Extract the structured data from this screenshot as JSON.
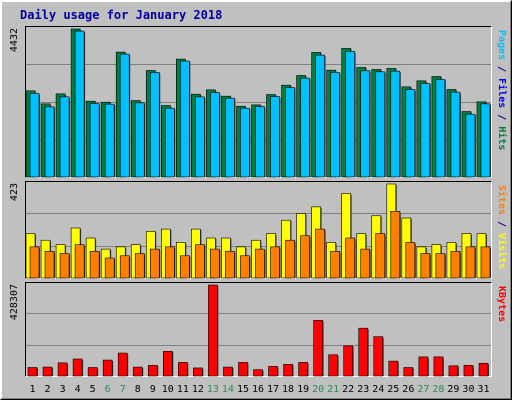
{
  "chart_data": {
    "type": "bar",
    "title": "Daily usage for January 2018",
    "x": [
      1,
      2,
      3,
      4,
      5,
      6,
      7,
      8,
      9,
      10,
      11,
      12,
      13,
      14,
      15,
      16,
      17,
      18,
      19,
      20,
      21,
      22,
      23,
      24,
      25,
      26,
      27,
      28,
      29,
      30,
      31
    ],
    "weekend_days": [
      6,
      7,
      13,
      14,
      20,
      21,
      27,
      28
    ],
    "colors": {
      "background": "#c0c0c0",
      "plot_background": "#c0c0c0",
      "title": "#0000a0",
      "weekday_label": "#000000",
      "weekend_label": "#2e8b57",
      "hits": "#008040",
      "files": "#0000ff",
      "pages": "#00c0ff",
      "visits": "#ffff00",
      "sites": "#ff8000",
      "kbytes": "#ff0000"
    },
    "panels": [
      {
        "id": "top",
        "ymax_label": "4432",
        "ymax": 4432,
        "right_label": [
          {
            "text": "Pages",
            "color_key": "pages"
          },
          {
            "text": " / ",
            "color_key": "title"
          },
          {
            "text": "Files",
            "color_key": "files"
          },
          {
            "text": " / ",
            "color_key": "title"
          },
          {
            "text": "Hits",
            "color_key": "hits"
          }
        ],
        "series": [
          {
            "name": "Hits",
            "color_key": "hits",
            "values": [
              2580,
              2190,
              2490,
              4432,
              2270,
              2240,
              3740,
              2290,
              3190,
              2140,
              3530,
              2480,
              2610,
              2420,
              2120,
              2160,
              2470,
              2750,
              3040,
              3730,
              3200,
              3850,
              3280,
              3220,
              3250,
              2700,
              2880,
              3010,
              2620,
              1960,
              2250
            ]
          },
          {
            "name": "Pages",
            "color_key": "pages",
            "values": [
              2500,
              2100,
              2400,
              4370,
              2200,
              2180,
              3680,
              2220,
              3130,
              2060,
              3470,
              2400,
              2530,
              2360,
              2060,
              2110,
              2410,
              2680,
              2960,
              3650,
              3130,
              3760,
              3180,
              3150,
              3170,
              2620,
              2800,
              2920,
              2540,
              1880,
              2190
            ]
          }
        ]
      },
      {
        "id": "middle",
        "ymax_label": "423",
        "ymax": 423,
        "right_label": [
          {
            "text": "Sites",
            "color_key": "sites"
          },
          {
            "text": " / ",
            "color_key": "title"
          },
          {
            "text": "Visits",
            "color_key": "visits"
          }
        ],
        "series": [
          {
            "name": "Visits",
            "color_key": "visits",
            "values": [
              200,
              170,
              150,
              225,
              180,
              130,
              140,
              150,
              210,
              220,
              160,
              220,
              180,
              180,
              140,
              170,
              200,
              260,
              290,
              320,
              160,
              380,
              200,
              280,
              423,
              270,
              140,
              150,
              160,
              200,
              200
            ]
          },
          {
            "name": "Sites",
            "color_key": "sites",
            "values": [
              140,
              120,
              110,
              150,
              120,
              90,
              100,
              110,
              130,
              140,
              100,
              150,
              130,
              120,
              100,
              130,
              140,
              170,
              190,
              220,
              120,
              180,
              130,
              200,
              300,
              160,
              110,
              110,
              120,
              140,
              140
            ]
          }
        ]
      },
      {
        "id": "bottom",
        "ymax_label": "428307",
        "ymax": 428307,
        "right_label": [
          {
            "text": "KBytes",
            "color_key": "kbytes"
          }
        ],
        "series": [
          {
            "name": "KBytes",
            "color_key": "kbytes",
            "values": [
              40000,
              42000,
              62000,
              80000,
              40000,
              75000,
              108000,
              42000,
              50000,
              116000,
              64000,
              38000,
              428307,
              42000,
              64000,
              30000,
              45000,
              55000,
              64000,
              262000,
              100000,
              142000,
              225000,
              185000,
              70000,
              40000,
              90000,
              90000,
              48000,
              50000,
              60000
            ]
          }
        ]
      }
    ]
  }
}
